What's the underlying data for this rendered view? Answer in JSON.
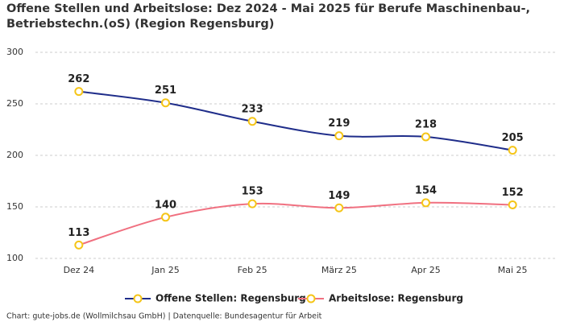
{
  "chart_data": {
    "type": "line",
    "title": "Offene Stellen und Arbeitslose: Dez 2024 - Mai 2025 für Berufe Maschinenbau-, Betriebstechn.(oS) (Region Regensburg)",
    "categories": [
      "Dez 24",
      "Jan 25",
      "Feb 25",
      "März 25",
      "Apr 25",
      "Mai 25"
    ],
    "series": [
      {
        "name": "Offene Stellen: Regensburg",
        "color": "#1f2d8a",
        "values": [
          262,
          251,
          233,
          219,
          218,
          205
        ]
      },
      {
        "name": "Arbeitslose: Regensburg",
        "color": "#f07080",
        "values": [
          113,
          140,
          153,
          149,
          154,
          152
        ]
      }
    ],
    "marker_color": "#f5c518",
    "ylim": [
      100,
      300
    ],
    "yticks": [
      100,
      150,
      200,
      250,
      300
    ],
    "grid": true,
    "legend": "bottom",
    "source": "Chart: gute-jobs.de (Wollmilchsau GmbH) | Datenquelle: Bundesagentur für Arbeit"
  }
}
